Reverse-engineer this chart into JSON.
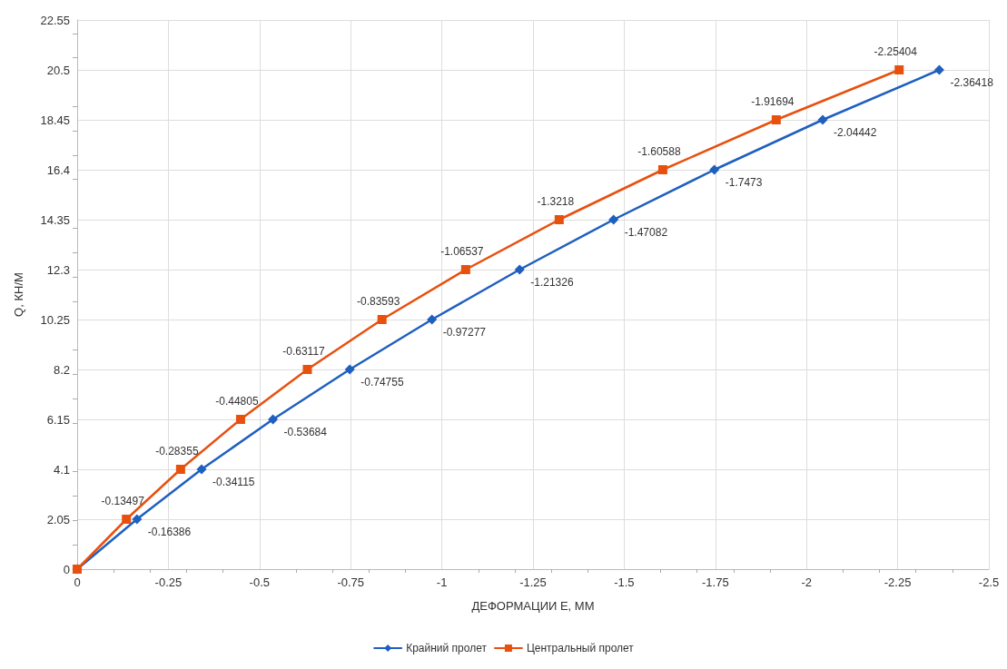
{
  "chart_data": {
    "type": "line",
    "xlabel": "ДЕФОРМАЦИИ Е, ММ",
    "ylabel": "Q, КН/М",
    "xlim": [
      0,
      -2.5
    ],
    "xticks": [
      0,
      -0.25,
      -0.5,
      -0.75,
      -1,
      -1.25,
      -1.5,
      -1.75,
      -2,
      -2.25,
      -2.5
    ],
    "ylim": [
      0,
      22.55
    ],
    "yticks": [
      0,
      2.05,
      4.1,
      6.15,
      8.2,
      10.25,
      12.3,
      14.35,
      16.4,
      18.45,
      20.5,
      22.55
    ],
    "grid": true,
    "legend": "bottom",
    "line_style": "solid",
    "series": [
      {
        "name": "Крайний пролет",
        "color": "#1f5fbf",
        "marker": "diamond",
        "x": [
          0,
          -0.16386,
          -0.34115,
          -0.53684,
          -0.74755,
          -0.97277,
          -1.21326,
          -1.47082,
          -1.7473,
          -2.04442,
          -2.36418
        ],
        "values": [
          0,
          2.05,
          4.1,
          6.15,
          8.2,
          10.25,
          12.3,
          14.35,
          16.4,
          18.45,
          20.5
        ]
      },
      {
        "name": "Центральный пролет",
        "color": "#e8500e",
        "marker": "square",
        "x": [
          0,
          -0.13497,
          -0.28355,
          -0.44805,
          -0.63117,
          -0.83593,
          -1.06537,
          -1.3218,
          -1.60588,
          -1.91694,
          -2.25404
        ],
        "values": [
          0,
          2.05,
          4.1,
          6.15,
          8.2,
          10.25,
          12.3,
          14.35,
          16.4,
          18.45,
          20.5
        ]
      }
    ],
    "annotations": [
      {
        "text": "-0.16386",
        "x": -0.16386,
        "y": 2.05
      },
      {
        "text": "-0.34115",
        "x": -0.34115,
        "y": 4.1
      },
      {
        "text": "-0.53684",
        "x": -0.53684,
        "y": 6.15
      },
      {
        "text": "-0.74755",
        "x": -0.74755,
        "y": 8.2
      },
      {
        "text": "-0.97277",
        "x": -0.97277,
        "y": 10.25
      },
      {
        "text": "-1.21326",
        "x": -1.21326,
        "y": 12.3
      },
      {
        "text": "-1.47082",
        "x": -1.47082,
        "y": 14.35
      },
      {
        "text": "-1.7473",
        "x": -1.7473,
        "y": 16.4
      },
      {
        "text": "-2.04442",
        "x": -2.04442,
        "y": 18.45
      },
      {
        "text": "-2.36418",
        "x": -2.36418,
        "y": 20.5
      },
      {
        "text": "-0.13497",
        "x": -0.13497,
        "y": 2.05
      },
      {
        "text": "-0.28355",
        "x": -0.28355,
        "y": 4.1
      },
      {
        "text": "-0.44805",
        "x": -0.44805,
        "y": 6.15
      },
      {
        "text": "-0.63117",
        "x": -0.63117,
        "y": 8.2
      },
      {
        "text": "-0.83593",
        "x": -0.83593,
        "y": 10.25
      },
      {
        "text": "-1.06537",
        "x": -1.06537,
        "y": 12.3
      },
      {
        "text": "-1.3218",
        "x": -1.3218,
        "y": 14.35
      },
      {
        "text": "-1.60588",
        "x": -1.60588,
        "y": 16.4
      },
      {
        "text": "-1.91694",
        "x": -1.91694,
        "y": 18.45
      },
      {
        "text": "-2.25404",
        "x": -2.25404,
        "y": 20.5
      }
    ]
  }
}
